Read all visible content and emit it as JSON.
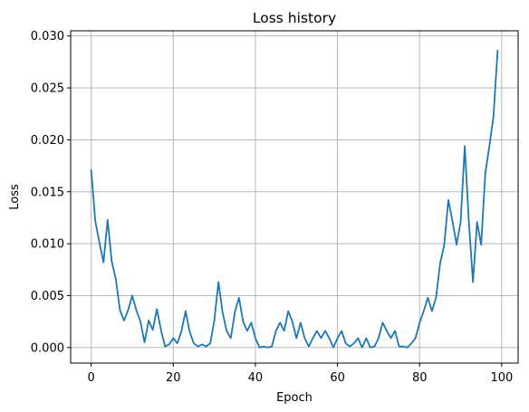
{
  "chart_data": {
    "type": "line",
    "title": "Loss history",
    "xlabel": "Epoch",
    "ylabel": "Loss",
    "xlim": [
      -5,
      104
    ],
    "ylim": [
      -0.0015,
      0.0305
    ],
    "xticks": [
      0,
      20,
      40,
      60,
      80,
      100
    ],
    "xtick_labels": [
      "0",
      "20",
      "40",
      "60",
      "80",
      "100"
    ],
    "yticks": [
      0.0,
      0.005,
      0.01,
      0.015,
      0.02,
      0.025,
      0.03
    ],
    "ytick_labels": [
      "0.000",
      "0.005",
      "0.010",
      "0.015",
      "0.020",
      "0.025",
      "0.030"
    ],
    "grid": true,
    "line_color": "#1f77b4",
    "series": [
      {
        "x": [
          0,
          1,
          2,
          3,
          4,
          5,
          6,
          7,
          8,
          9,
          10,
          11,
          12,
          13,
          14,
          15,
          16,
          17,
          18,
          19,
          20,
          21,
          22,
          23,
          24,
          25,
          26,
          27,
          28,
          29,
          30,
          31,
          32,
          33,
          34,
          35,
          36,
          37,
          38,
          39,
          40,
          41,
          42,
          43,
          44,
          45,
          46,
          47,
          48,
          49,
          50,
          51,
          52,
          53,
          54,
          55,
          56,
          57,
          58,
          59,
          60,
          61,
          62,
          63,
          64,
          65,
          66,
          67,
          68,
          69,
          70,
          71,
          72,
          73,
          74,
          75,
          76,
          77,
          78,
          79,
          80,
          81,
          82,
          83,
          84,
          85,
          86,
          87,
          88,
          89,
          90,
          91,
          92,
          93,
          94,
          95,
          96,
          97,
          98,
          99
        ],
        "values": [
          0.0171,
          0.0122,
          0.0101,
          0.0082,
          0.0123,
          0.0083,
          0.0066,
          0.0036,
          0.0026,
          0.0036,
          0.005,
          0.0036,
          0.0025,
          0.0005,
          0.0026,
          0.0017,
          0.0037,
          0.0017,
          0.0001,
          0.0003,
          0.0009,
          0.0004,
          0.0016,
          0.0035,
          0.0015,
          0.0004,
          0.0001,
          0.0003,
          0.0001,
          0.0004,
          0.0026,
          0.0063,
          0.0034,
          0.0016,
          0.0009,
          0.0034,
          0.0048,
          0.0025,
          0.0016,
          0.0024,
          0.0009,
          0.0,
          0.0001,
          0.0,
          0.0001,
          0.0016,
          0.0024,
          0.0016,
          0.0035,
          0.0025,
          0.0009,
          0.0024,
          0.0009,
          0.0001,
          0.0009,
          0.0016,
          0.0009,
          0.0016,
          0.0009,
          0.0,
          0.0009,
          0.0016,
          0.0004,
          0.0001,
          0.0004,
          0.0009,
          0.0,
          0.0009,
          0.0,
          0.0001,
          0.0009,
          0.0024,
          0.0016,
          0.0009,
          0.0016,
          0.0001,
          0.0001,
          0.0,
          0.0004,
          0.0009,
          0.0024,
          0.0035,
          0.0048,
          0.0035,
          0.0048,
          0.0081,
          0.0099,
          0.0142,
          0.0122,
          0.0099,
          0.0121,
          0.0194,
          0.0121,
          0.0063,
          0.0121,
          0.0099,
          0.0168,
          0.0194,
          0.0223,
          0.0286
        ]
      }
    ]
  }
}
